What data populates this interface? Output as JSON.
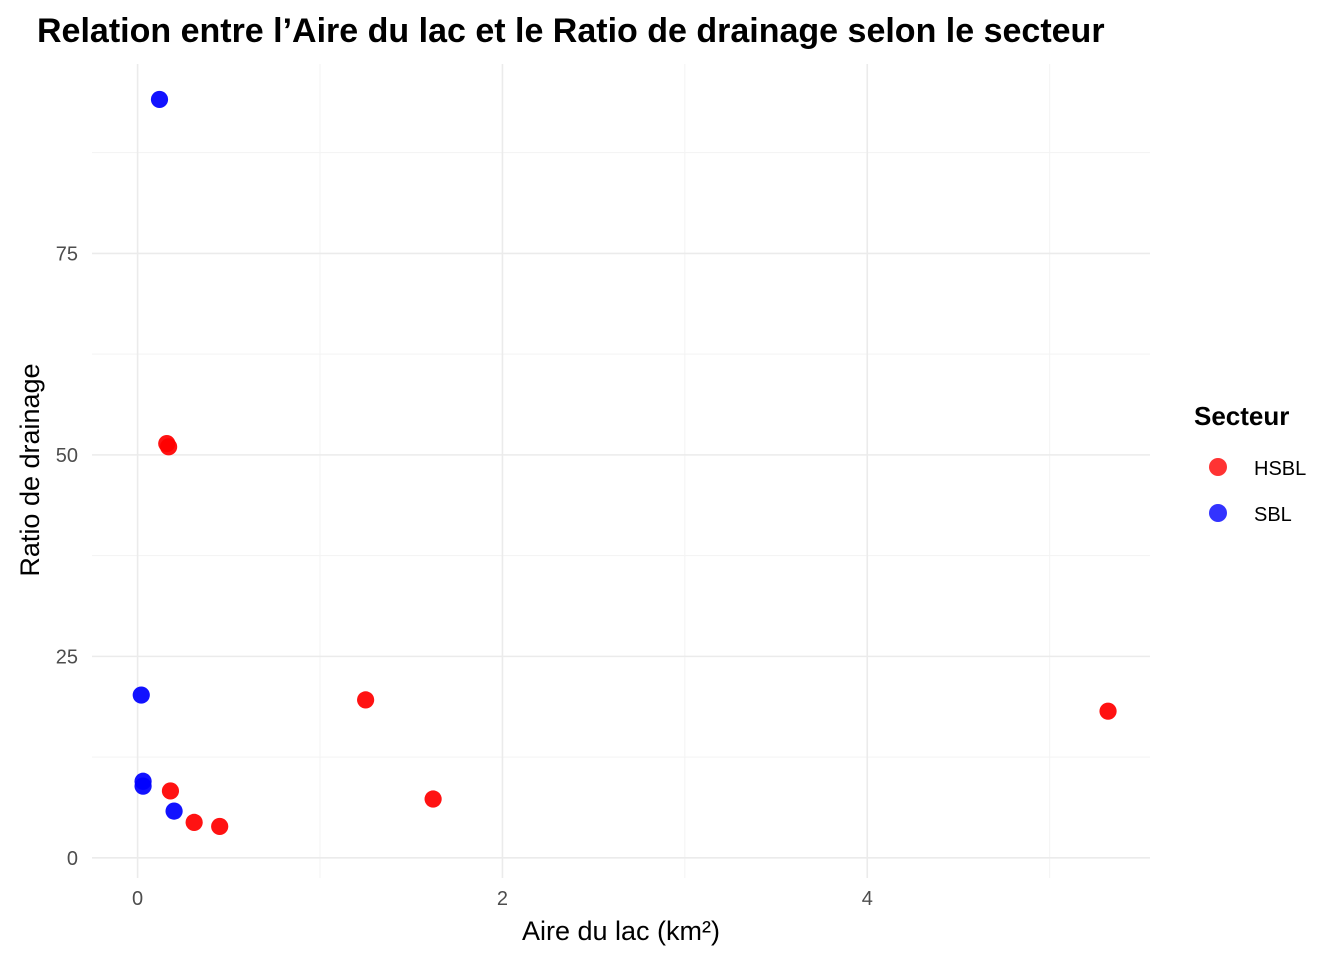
{
  "chart_data": {
    "type": "scatter",
    "title": "Relation entre l’Aire du lac et le Ratio de drainage selon le secteur",
    "xlabel": "Aire du lac (km²)",
    "ylabel": "Ratio de drainage",
    "xlim": [
      -0.25,
      5.55
    ],
    "ylim": [
      -2.5,
      98.5
    ],
    "x_ticks": [
      0,
      2,
      4
    ],
    "x_tick_labels": [
      "0",
      "2",
      "4"
    ],
    "x_minor_ticks": [
      1,
      3,
      5
    ],
    "y_ticks": [
      0,
      25,
      50,
      75
    ],
    "y_tick_labels": [
      "0",
      "25",
      "50",
      "75"
    ],
    "y_minor_ticks": [
      12.5,
      37.5,
      62.5,
      87.5
    ],
    "grid": true,
    "legend": {
      "title": "Secteur",
      "position": "right"
    },
    "series": [
      {
        "name": "HSBL",
        "color": "#ff0000",
        "points": [
          {
            "x": 0.16,
            "y": 51.4
          },
          {
            "x": 0.17,
            "y": 51.0
          },
          {
            "x": 0.18,
            "y": 8.3
          },
          {
            "x": 0.31,
            "y": 4.4
          },
          {
            "x": 0.45,
            "y": 3.9
          },
          {
            "x": 1.25,
            "y": 19.6
          },
          {
            "x": 1.62,
            "y": 7.3
          },
          {
            "x": 5.32,
            "y": 18.2
          }
        ]
      },
      {
        "name": "SBL",
        "color": "#0000ff",
        "points": [
          {
            "x": 0.12,
            "y": 94.1
          },
          {
            "x": 0.02,
            "y": 20.2
          },
          {
            "x": 0.03,
            "y": 9.5
          },
          {
            "x": 0.03,
            "y": 8.9
          },
          {
            "x": 0.2,
            "y": 5.8
          }
        ]
      }
    ]
  }
}
